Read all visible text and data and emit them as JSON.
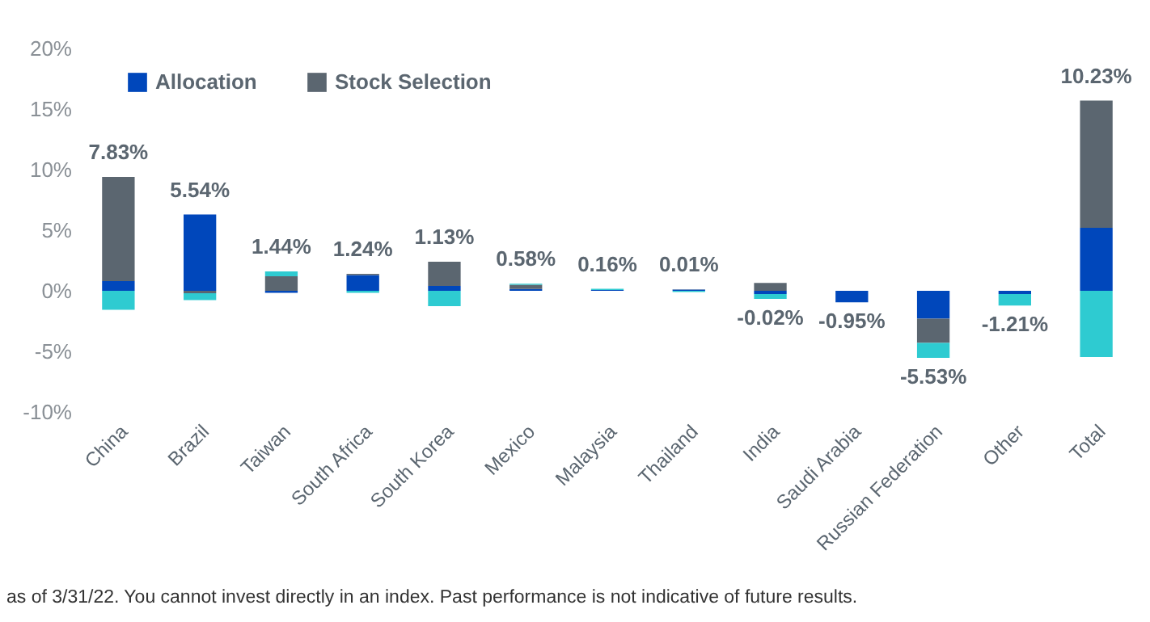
{
  "chart_data": {
    "type": "bar",
    "stacked": true,
    "categories": [
      "China",
      "Brazil",
      "Taiwan",
      "South Africa",
      "South Korea",
      "Mexico",
      "Malaysia",
      "Thailand",
      "India",
      "Saudi Arabia",
      "Russian Federation",
      "Other",
      "Total"
    ],
    "series": [
      {
        "name": "Allocation",
        "color": "#0047bb",
        "values": [
          0.8,
          6.3,
          -0.16,
          1.3,
          0.4,
          0.15,
          0.06,
          0.1,
          -0.27,
          -0.95,
          -2.3,
          -0.27,
          5.2
        ]
      },
      {
        "name": "Stock Selection",
        "color": "#5b6670",
        "values": [
          8.6,
          -0.2,
          1.2,
          0.1,
          2.0,
          0.35,
          0.0,
          0.01,
          0.65,
          0.0,
          -2.0,
          0.0,
          10.5
        ]
      },
      {
        "color": "#2ecbd1",
        "values": [
          -1.57,
          -0.56,
          0.4,
          -0.16,
          -1.27,
          0.08,
          0.1,
          -0.1,
          -0.4,
          0.0,
          -1.23,
          -0.94,
          -5.47
        ]
      }
    ],
    "totals": [
      "7.83%",
      "5.54%",
      "1.44%",
      "1.24%",
      "1.13%",
      "0.58%",
      "0.16%",
      "0.01%",
      "-0.02%",
      "-0.95%",
      "-5.53%",
      "-1.21%",
      "10.23%"
    ],
    "ylim": [
      -10,
      20
    ],
    "yticks": [
      {
        "value": -10,
        "label": "-10%"
      },
      {
        "value": -5,
        "label": "-5%"
      },
      {
        "value": 0,
        "label": "0%"
      },
      {
        "value": 5,
        "label": "5%"
      },
      {
        "value": 10,
        "label": "10%"
      },
      {
        "value": 15,
        "label": "15%"
      },
      {
        "value": 20,
        "label": "20%"
      }
    ],
    "grid": false,
    "legend": "top left",
    "annotations": [
      "as of 3/31/22. You cannot invest directly in an index. Past performance is not indicative of future results."
    ]
  }
}
